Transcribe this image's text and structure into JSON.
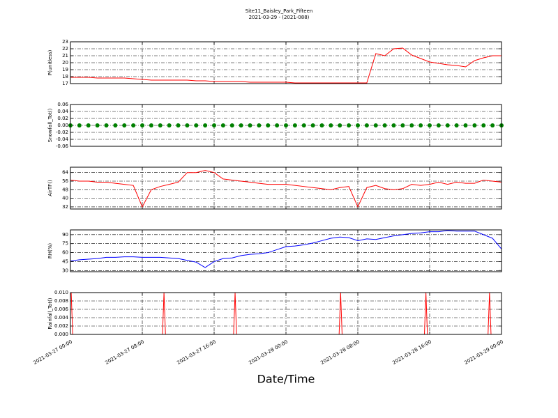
{
  "title": "Site11_Baisley_Park_Fifteen",
  "subtitle": "2021-03-29 - (2021-088)",
  "xlabel": "Date/Time",
  "x_axis": {
    "xlim": [
      "2021-03-27 00:00",
      "2021-03-29 00:00"
    ],
    "xticks": [
      "2021-03-27 00:00",
      "2021-03-27 08:00",
      "2021-03-27 16:00",
      "2021-03-28 00:00",
      "2021-03-28 08:00",
      "2021-03-28 16:00",
      "2021-03-29 00:00"
    ]
  },
  "chart_data": [
    {
      "type": "line",
      "ylabel": "P(unitless)",
      "ylim": [
        17,
        23
      ],
      "yticks": [
        17,
        18,
        19,
        20,
        21,
        22,
        23
      ],
      "grid": true,
      "color": "#ff0000",
      "x": [
        "2021-03-27 00:00",
        "2021-03-27 01:00",
        "2021-03-27 02:00",
        "2021-03-27 03:00",
        "2021-03-27 04:00",
        "2021-03-27 05:00",
        "2021-03-27 06:00",
        "2021-03-27 07:00",
        "2021-03-27 08:00",
        "2021-03-27 09:00",
        "2021-03-27 10:00",
        "2021-03-27 11:00",
        "2021-03-27 12:00",
        "2021-03-27 13:00",
        "2021-03-27 14:00",
        "2021-03-27 15:00",
        "2021-03-27 16:00",
        "2021-03-27 17:00",
        "2021-03-27 18:00",
        "2021-03-27 19:00",
        "2021-03-27 20:00",
        "2021-03-27 21:00",
        "2021-03-27 22:00",
        "2021-03-27 23:00",
        "2021-03-28 00:00",
        "2021-03-28 01:00",
        "2021-03-28 02:00",
        "2021-03-28 03:00",
        "2021-03-28 04:00",
        "2021-03-28 05:00",
        "2021-03-28 06:00",
        "2021-03-28 07:00",
        "2021-03-28 08:00",
        "2021-03-28 09:00",
        "2021-03-28 10:00",
        "2021-03-28 11:00",
        "2021-03-28 12:00",
        "2021-03-28 13:00",
        "2021-03-28 14:00",
        "2021-03-28 15:00",
        "2021-03-28 16:00",
        "2021-03-28 17:00",
        "2021-03-28 18:00",
        "2021-03-28 19:00",
        "2021-03-28 20:00",
        "2021-03-28 21:00",
        "2021-03-28 22:00",
        "2021-03-28 23:00",
        "2021-03-29 00:00"
      ],
      "values": [
        17.9,
        17.9,
        17.9,
        17.8,
        17.8,
        17.8,
        17.8,
        17.7,
        17.6,
        17.5,
        17.5,
        17.5,
        17.5,
        17.5,
        17.4,
        17.4,
        17.3,
        17.3,
        17.3,
        17.3,
        17.2,
        17.2,
        17.2,
        17.2,
        17.2,
        17.1,
        17.1,
        17.1,
        17.1,
        17.1,
        17.1,
        17.1,
        17.1,
        17.1,
        21.3,
        21.0,
        22.0,
        22.1,
        21.1,
        20.6,
        20.1,
        19.9,
        19.7,
        19.6,
        19.4,
        20.3,
        20.7,
        21.0,
        21.0
      ]
    },
    {
      "type": "scatter",
      "ylabel": "Snowfall_Tot()",
      "ylim": [
        -0.06,
        0.06
      ],
      "yticks": [
        -0.06,
        -0.04,
        -0.02,
        {
          "value": 0,
          "label": "0.00"
        },
        0.02,
        0.04,
        0.06
      ],
      "grid": true,
      "color": "#008000",
      "x": [
        "2021-03-27 00:00",
        "2021-03-27 01:00",
        "2021-03-27 02:00",
        "2021-03-27 03:00",
        "2021-03-27 04:00",
        "2021-03-27 05:00",
        "2021-03-27 06:00",
        "2021-03-27 07:00",
        "2021-03-27 08:00",
        "2021-03-27 09:00",
        "2021-03-27 10:00",
        "2021-03-27 11:00",
        "2021-03-27 12:00",
        "2021-03-27 13:00",
        "2021-03-27 14:00",
        "2021-03-27 15:00",
        "2021-03-27 16:00",
        "2021-03-27 17:00",
        "2021-03-27 18:00",
        "2021-03-27 19:00",
        "2021-03-27 20:00",
        "2021-03-27 21:00",
        "2021-03-27 22:00",
        "2021-03-27 23:00",
        "2021-03-28 00:00",
        "2021-03-28 01:00",
        "2021-03-28 02:00",
        "2021-03-28 03:00",
        "2021-03-28 04:00",
        "2021-03-28 05:00",
        "2021-03-28 06:00",
        "2021-03-28 07:00",
        "2021-03-28 08:00",
        "2021-03-28 09:00",
        "2021-03-28 10:00",
        "2021-03-28 11:00",
        "2021-03-28 12:00",
        "2021-03-28 13:00",
        "2021-03-28 14:00",
        "2021-03-28 15:00",
        "2021-03-28 16:00",
        "2021-03-28 17:00",
        "2021-03-28 18:00",
        "2021-03-28 19:00",
        "2021-03-28 20:00",
        "2021-03-28 21:00",
        "2021-03-28 22:00",
        "2021-03-28 23:00",
        "2021-03-29 00:00"
      ],
      "values": [
        0,
        0,
        0,
        0,
        0,
        0,
        0,
        0,
        0,
        0,
        0,
        0,
        0,
        0,
        0,
        0,
        0,
        0,
        0,
        0,
        0,
        0,
        0,
        0,
        0,
        0,
        0,
        0,
        0,
        0,
        0,
        0,
        0,
        0,
        0,
        0,
        0,
        0,
        0,
        0,
        0,
        0,
        0,
        0,
        0,
        0,
        0,
        0,
        0
      ]
    },
    {
      "type": "line",
      "ylabel": "AirTF()",
      "ylim": [
        30,
        69
      ],
      "yticks": [
        32,
        40,
        48,
        56,
        64
      ],
      "grid": true,
      "color": "#ff0000",
      "x": [
        "2021-03-27 00:00",
        "2021-03-27 01:00",
        "2021-03-27 02:00",
        "2021-03-27 03:00",
        "2021-03-27 04:00",
        "2021-03-27 05:00",
        "2021-03-27 06:00",
        "2021-03-27 07:00",
        "2021-03-27 08:00",
        "2021-03-27 09:00",
        "2021-03-27 10:00",
        "2021-03-27 11:00",
        "2021-03-27 12:00",
        "2021-03-27 13:00",
        "2021-03-27 14:00",
        "2021-03-27 15:00",
        "2021-03-27 16:00",
        "2021-03-27 17:00",
        "2021-03-27 18:00",
        "2021-03-27 19:00",
        "2021-03-27 20:00",
        "2021-03-27 21:00",
        "2021-03-27 22:00",
        "2021-03-27 23:00",
        "2021-03-28 00:00",
        "2021-03-28 01:00",
        "2021-03-28 02:00",
        "2021-03-28 03:00",
        "2021-03-28 04:00",
        "2021-03-28 05:00",
        "2021-03-28 06:00",
        "2021-03-28 07:00",
        "2021-03-28 08:00",
        "2021-03-28 09:00",
        "2021-03-28 10:00",
        "2021-03-28 11:00",
        "2021-03-28 12:00",
        "2021-03-28 13:00",
        "2021-03-28 14:00",
        "2021-03-28 15:00",
        "2021-03-28 16:00",
        "2021-03-28 17:00",
        "2021-03-28 18:00",
        "2021-03-28 19:00",
        "2021-03-28 20:00",
        "2021-03-28 21:00",
        "2021-03-28 22:00",
        "2021-03-28 23:00",
        "2021-03-29 00:00"
      ],
      "values": [
        57,
        56,
        56,
        55,
        55,
        54,
        53,
        52,
        32,
        48,
        51,
        53,
        55,
        64,
        64,
        66,
        64,
        58,
        57,
        56,
        55,
        54,
        53,
        53,
        53,
        52,
        51,
        50,
        49,
        48,
        50,
        51,
        32,
        50,
        52,
        49,
        48,
        49,
        53,
        52,
        53,
        55,
        53,
        55,
        54,
        54,
        57,
        56,
        55
      ]
    },
    {
      "type": "line",
      "ylabel": "RH(%)",
      "ylim": [
        28,
        98
      ],
      "yticks": [
        30,
        45,
        60,
        75,
        90
      ],
      "grid": true,
      "color": "#0000ff",
      "x": [
        "2021-03-27 00:00",
        "2021-03-27 01:00",
        "2021-03-27 02:00",
        "2021-03-27 03:00",
        "2021-03-27 04:00",
        "2021-03-27 05:00",
        "2021-03-27 06:00",
        "2021-03-27 07:00",
        "2021-03-27 08:00",
        "2021-03-27 09:00",
        "2021-03-27 10:00",
        "2021-03-27 11:00",
        "2021-03-27 12:00",
        "2021-03-27 13:00",
        "2021-03-27 14:00",
        "2021-03-27 15:00",
        "2021-03-27 16:00",
        "2021-03-27 17:00",
        "2021-03-27 18:00",
        "2021-03-27 19:00",
        "2021-03-27 20:00",
        "2021-03-27 21:00",
        "2021-03-27 22:00",
        "2021-03-27 23:00",
        "2021-03-28 00:00",
        "2021-03-28 01:00",
        "2021-03-28 02:00",
        "2021-03-28 03:00",
        "2021-03-28 04:00",
        "2021-03-28 05:00",
        "2021-03-28 06:00",
        "2021-03-28 07:00",
        "2021-03-28 08:00",
        "2021-03-28 09:00",
        "2021-03-28 10:00",
        "2021-03-28 11:00",
        "2021-03-28 12:00",
        "2021-03-28 13:00",
        "2021-03-28 14:00",
        "2021-03-28 15:00",
        "2021-03-28 16:00",
        "2021-03-28 17:00",
        "2021-03-28 18:00",
        "2021-03-28 19:00",
        "2021-03-28 20:00",
        "2021-03-28 21:00",
        "2021-03-28 22:00",
        "2021-03-28 23:00",
        "2021-03-29 00:00"
      ],
      "values": [
        46,
        48,
        49,
        50,
        52,
        52,
        53,
        53,
        52,
        52,
        52,
        51,
        50,
        47,
        44,
        35,
        45,
        50,
        51,
        55,
        57,
        58,
        60,
        65,
        70,
        71,
        73,
        76,
        80,
        84,
        86,
        85,
        80,
        83,
        82,
        85,
        88,
        90,
        92,
        93,
        95,
        95,
        97,
        96,
        96,
        96,
        90,
        84,
        66
      ]
    },
    {
      "type": "line",
      "ylabel": "Rainfall_Tot()",
      "ylim": [
        0,
        0.01
      ],
      "yticks": [
        {
          "value": 0,
          "label": "0.000"
        },
        0.002,
        0.004,
        0.006,
        0.008,
        {
          "value": 0.01,
          "label": "0.010"
        }
      ],
      "grid": true,
      "color": "#ff0000",
      "x": [
        "2021-03-27 00:05",
        "2021-03-27 00:15",
        "2021-03-27 10:15",
        "2021-03-27 10:25",
        "2021-03-27 10:35",
        "2021-03-27 18:10",
        "2021-03-27 18:20",
        "2021-03-27 18:30",
        "2021-03-28 05:55",
        "2021-03-28 06:05",
        "2021-03-28 06:15",
        "2021-03-28 15:25",
        "2021-03-28 15:35",
        "2021-03-28 15:45",
        "2021-03-28 22:30",
        "2021-03-28 22:40",
        "2021-03-28 22:50",
        "2021-03-29 00:00"
      ],
      "values": [
        0.01,
        0,
        0,
        0.01,
        0,
        0,
        0.01,
        0,
        0,
        0.01,
        0,
        0,
        0.01,
        0,
        0,
        0.01,
        0,
        0
      ]
    }
  ]
}
